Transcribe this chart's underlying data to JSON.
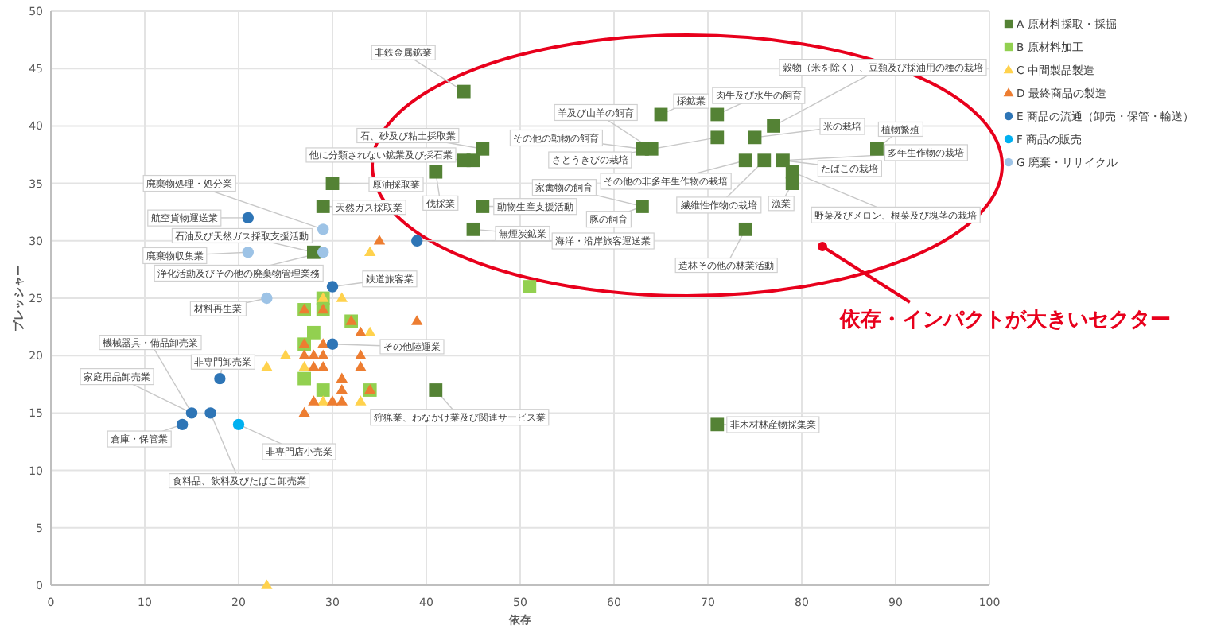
{
  "chart_data": {
    "type": "scatter",
    "xlabel": "依存",
    "ylabel": "プレッシャー",
    "xlim": [
      0,
      100
    ],
    "xticks": [
      0,
      10,
      20,
      30,
      40,
      50,
      60,
      70,
      80,
      90,
      100
    ],
    "ylim": [
      0,
      50
    ],
    "yticks": [
      0,
      5,
      10,
      15,
      20,
      25,
      30,
      35,
      40,
      45,
      50
    ],
    "grid": true,
    "legend": "top right",
    "series": [
      {
        "name": "A 原材料採取・採掘",
        "marker": "square",
        "color": "#548235",
        "x": [
          44,
          46,
          45,
          44,
          30,
          41,
          29,
          28,
          46,
          45,
          65,
          71,
          64,
          63,
          71,
          77,
          75,
          88,
          78,
          76,
          74,
          79,
          79,
          63,
          74,
          71,
          41
        ],
        "values": [
          43,
          38,
          37,
          37,
          35,
          36,
          33,
          29,
          33,
          31,
          41,
          41,
          38,
          38,
          39,
          40,
          39,
          38,
          37,
          37,
          37,
          36,
          35,
          33,
          31,
          14,
          17
        ]
      },
      {
        "name": "B 原材料加工",
        "marker": "square",
        "color": "#92d050",
        "x": [
          27,
          29,
          28,
          32,
          27,
          27,
          29,
          34,
          29,
          51
        ],
        "values": [
          24,
          24,
          22,
          23,
          21,
          18,
          17,
          17,
          25,
          26
        ]
      },
      {
        "name": "C 中間製品製造",
        "marker": "triangle",
        "color": "#ffd24d",
        "x": [
          31,
          25,
          23,
          27,
          34,
          33,
          29,
          23,
          29,
          34
        ],
        "values": [
          25,
          20,
          19,
          19,
          22,
          16,
          16,
          0,
          25,
          29
        ]
      },
      {
        "name": "D 最終商品の製造",
        "marker": "triangle",
        "color": "#ed7d31",
        "x": [
          35,
          27,
          29,
          32,
          33,
          39,
          27,
          29,
          27,
          28,
          29,
          33,
          28,
          29,
          33,
          31,
          31,
          34,
          28,
          30,
          31,
          27
        ],
        "values": [
          30,
          24,
          24,
          23,
          22,
          23,
          21,
          21,
          20,
          20,
          20,
          20,
          19,
          19,
          19,
          18,
          17,
          17,
          16,
          16,
          16,
          15
        ]
      },
      {
        "name": "E 商品の流通（卸売・保管・輸送）",
        "marker": "circle",
        "color": "#2e75b6",
        "x": [
          21,
          39,
          30,
          30,
          18,
          15,
          17,
          14
        ],
        "values": [
          32,
          30,
          26,
          21,
          18,
          15,
          15,
          14
        ]
      },
      {
        "name": "F 商品の販売",
        "marker": "circle",
        "color": "#00b0f0",
        "x": [
          20
        ],
        "values": [
          14
        ]
      },
      {
        "name": "G 廃棄・リサイクル",
        "marker": "circle",
        "color": "#9dc3e6",
        "x": [
          29,
          21,
          29,
          23
        ],
        "values": [
          31,
          29,
          29,
          25
        ]
      }
    ],
    "annotations": [
      {
        "text": "非鉄金属鉱業",
        "x": 44,
        "y": 43
      },
      {
        "text": "石、砂及び粘土採取業",
        "x": 46,
        "y": 38
      },
      {
        "text": "他に分類されない鉱業及び採石業",
        "x": 45,
        "y": 37
      },
      {
        "text": "原油採取業",
        "x": 30,
        "y": 35
      },
      {
        "text": "伐採業",
        "x": 41,
        "y": 36
      },
      {
        "text": "天然ガス採取業",
        "x": 29,
        "y": 33
      },
      {
        "text": "石油及び天然ガス採取支援活動",
        "x": 28,
        "y": 29
      },
      {
        "text": "動物生産支援活動",
        "x": 46,
        "y": 33
      },
      {
        "text": "無煙炭鉱業",
        "x": 45,
        "y": 31
      },
      {
        "text": "採鉱業",
        "x": 65,
        "y": 41
      },
      {
        "text": "肉牛及び水牛の飼育",
        "x": 71,
        "y": 41
      },
      {
        "text": "羊及び山羊の飼育",
        "x": 64,
        "y": 38
      },
      {
        "text": "その他の動物の飼育",
        "x": 63,
        "y": 38
      },
      {
        "text": "さとうきびの栽培",
        "x": 71,
        "y": 39
      },
      {
        "text": "穀物（米を除く）、豆類及び採油用の種の栽培",
        "x": 77,
        "y": 40
      },
      {
        "text": "米の栽培",
        "x": 75,
        "y": 39
      },
      {
        "text": "植物繁殖",
        "x": 88,
        "y": 38
      },
      {
        "text": "多年生作物の栽培",
        "x": 78,
        "y": 37
      },
      {
        "text": "たばこの栽培",
        "x": 78,
        "y": 37
      },
      {
        "text": "その他の非多年生作物の栽培",
        "x": 74,
        "y": 37
      },
      {
        "text": "繊維性作物の栽培",
        "x": 76,
        "y": 37
      },
      {
        "text": "野菜及びメロン、根菜及び塊茎の栽培",
        "x": 79,
        "y": 36
      },
      {
        "text": "漁業",
        "x": 79,
        "y": 35
      },
      {
        "text": "豚の飼育",
        "x": 63,
        "y": 33
      },
      {
        "text": "家禽物の飼育",
        "x": 63,
        "y": 33
      },
      {
        "text": "造林その他の林業活動",
        "x": 74,
        "y": 31
      },
      {
        "text": "非木材林産物採集業",
        "x": 71,
        "y": 14
      },
      {
        "text": "狩猟業、わなかけ業及び関連サービス業",
        "x": 41,
        "y": 17
      },
      {
        "text": "廃棄物処理・処分業",
        "x": 29,
        "y": 31
      },
      {
        "text": "航空貨物運送業",
        "x": 21,
        "y": 32
      },
      {
        "text": "廃棄物収集業",
        "x": 21,
        "y": 29
      },
      {
        "text": "浄化活動及びその他の廃棄物管理業務",
        "x": 29,
        "y": 29
      },
      {
        "text": "海洋・沿岸旅客運送業",
        "x": 39,
        "y": 30
      },
      {
        "text": "鉄道旅客業",
        "x": 30,
        "y": 26
      },
      {
        "text": "その他陸運業",
        "x": 30,
        "y": 21
      },
      {
        "text": "材料再生業",
        "x": 23,
        "y": 25
      },
      {
        "text": "機械器具・備品卸売業",
        "x": 15,
        "y": 15
      },
      {
        "text": "家庭用品卸売業",
        "x": 15,
        "y": 15
      },
      {
        "text": "非専門卸売業",
        "x": 18,
        "y": 18
      },
      {
        "text": "倉庫・保管業",
        "x": 14,
        "y": 14
      },
      {
        "text": "食料品、飲料及びたばこ卸売業",
        "x": 17,
        "y": 15
      },
      {
        "text": "非専門店小売業",
        "x": 20,
        "y": 14
      },
      "依存・インパクトが大きいセクター"
    ]
  }
}
